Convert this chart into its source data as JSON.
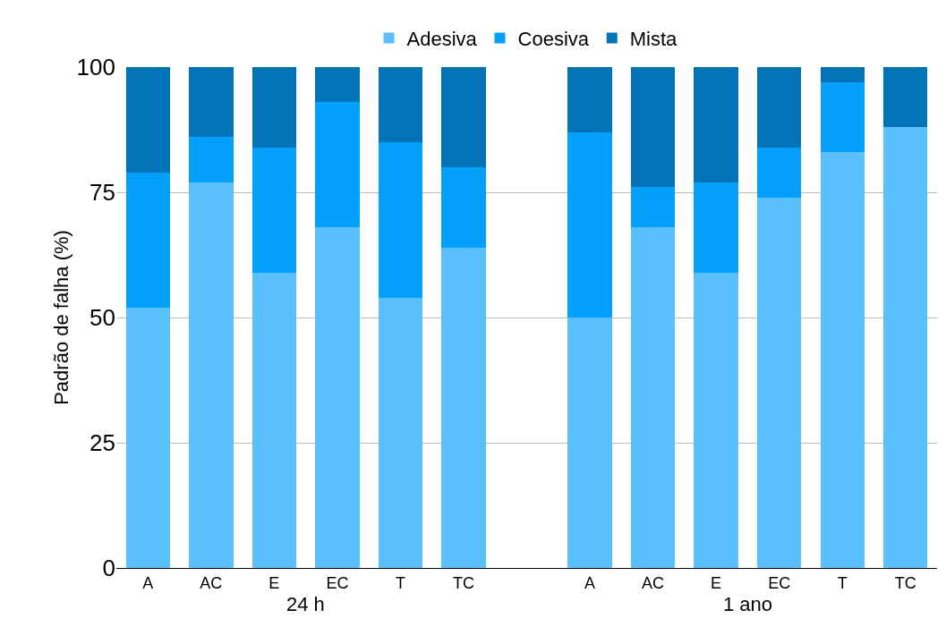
{
  "chart_data": {
    "type": "bar",
    "stacked": true,
    "ylabel": "Padrão de falha (%)",
    "categories": [
      "A",
      "AC",
      "E",
      "EC",
      "T",
      "TC",
      null,
      "A",
      "AC",
      "E",
      "EC",
      "T",
      "TC"
    ],
    "series": [
      {
        "name": "Adesiva",
        "color": "#5ac0fc",
        "values": [
          52,
          77,
          59,
          68,
          54,
          64,
          null,
          50,
          68,
          59,
          74,
          83,
          88
        ]
      },
      {
        "name": "Coesiva",
        "color": "#05a0fc",
        "values": [
          27,
          9,
          25,
          25,
          31,
          16,
          null,
          37,
          8,
          18,
          10,
          14,
          0
        ]
      },
      {
        "name": "Mista",
        "color": "#0173b6",
        "values": [
          21,
          14,
          16,
          7,
          15,
          20,
          null,
          13,
          24,
          23,
          16,
          3,
          12
        ]
      }
    ],
    "ylim": [
      0,
      100
    ],
    "yticks": [
      0,
      25,
      50,
      75,
      100
    ],
    "grid": "y",
    "legend": "top",
    "annotations": [
      "24 h",
      "1 ano"
    ]
  }
}
